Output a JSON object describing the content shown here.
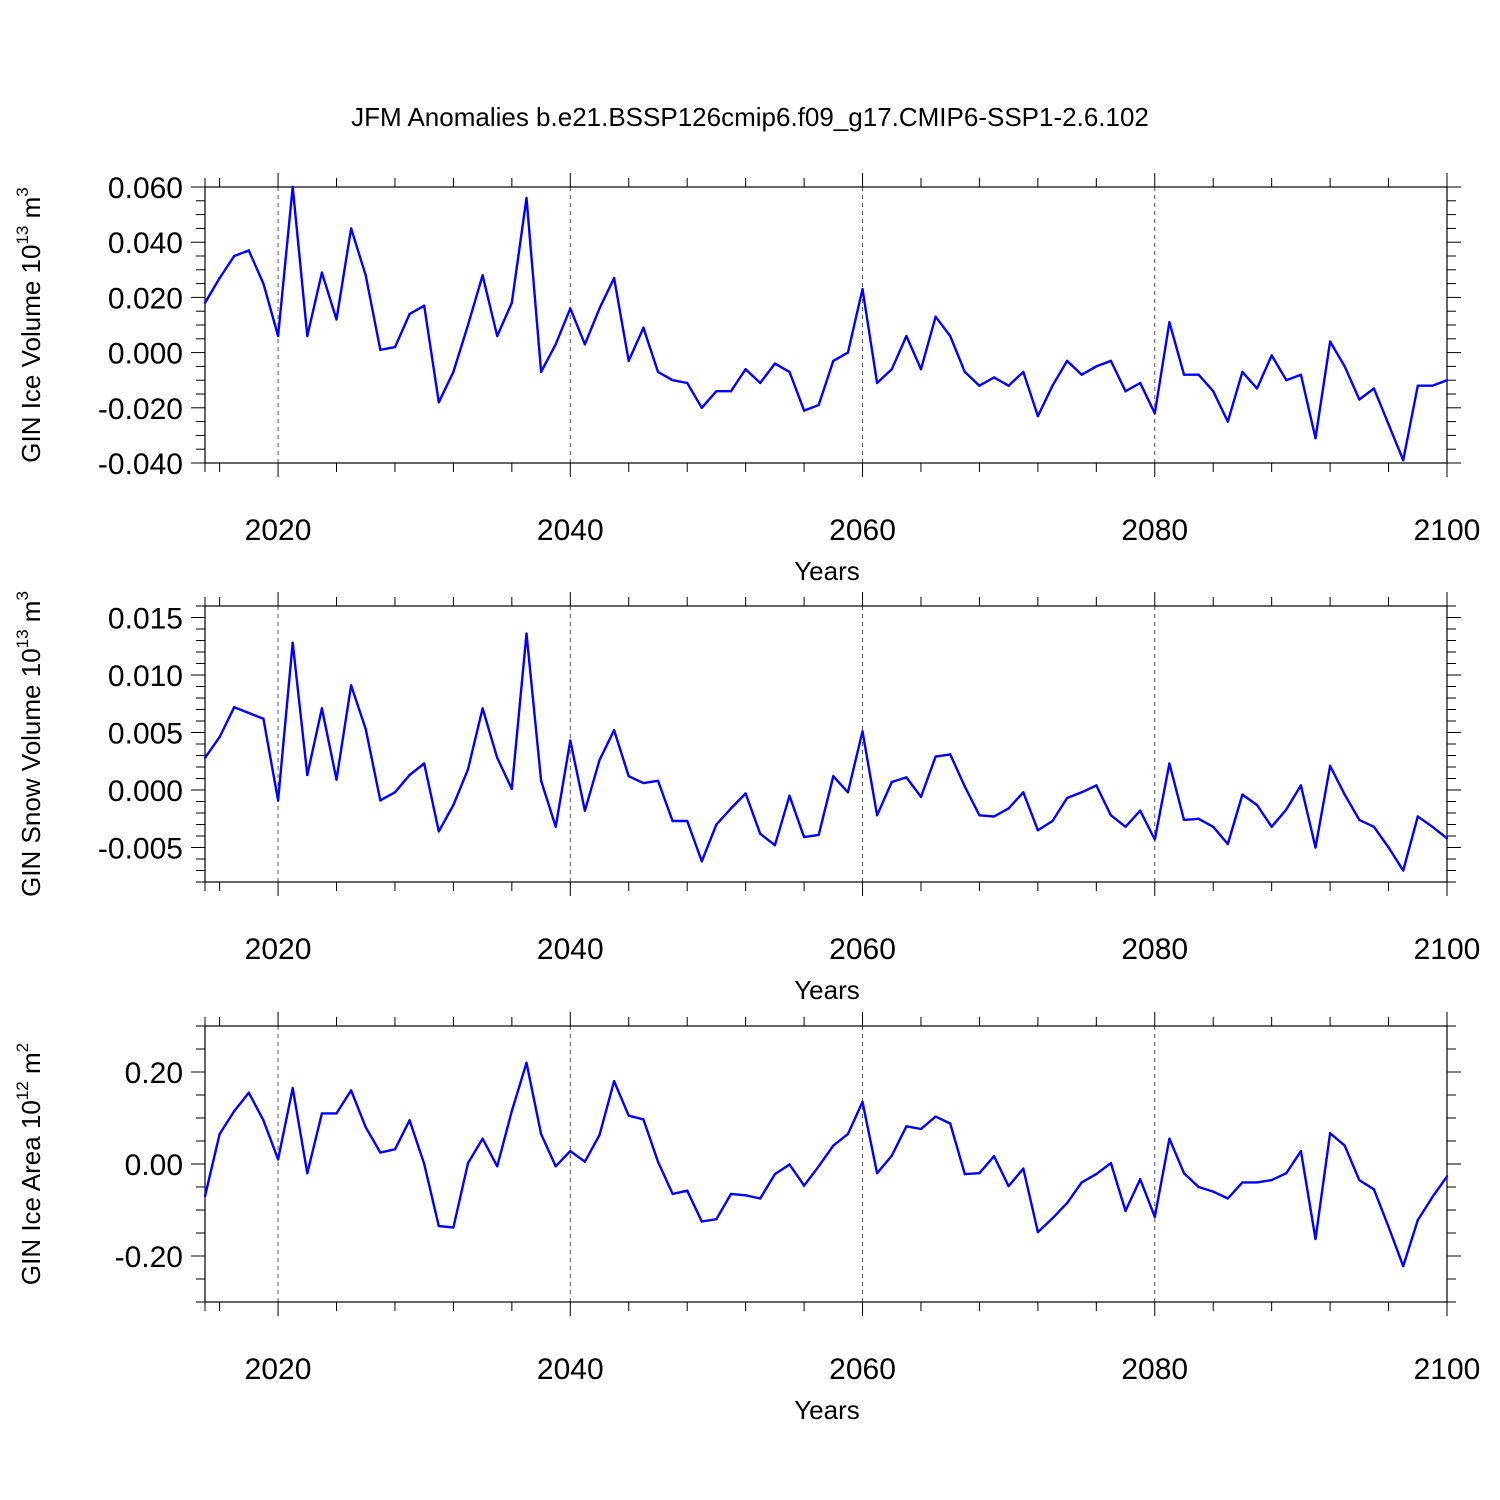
{
  "title": "JFM Anomalies b.e21.BSSP126cmip6.f09_g17.CMIP6-SSP1-2.6.102",
  "line_color": "#0000ff",
  "chart_data": [
    {
      "type": "line",
      "ylabel": "GIN Ice Volume 10",
      "ylabel_exp": "13",
      "ylabel_unit": " m",
      "ylabel_unit_exp": "3",
      "xlabel": "Years",
      "xlim": [
        2015,
        2100
      ],
      "ylim": [
        -0.04,
        0.06
      ],
      "xticks": [
        2020,
        2040,
        2060,
        2080,
        2100
      ],
      "xtick_labels": [
        "2020",
        "2040",
        "2060",
        "2080",
        "2100"
      ],
      "yticks": [
        -0.04,
        -0.02,
        0.0,
        0.02,
        0.04,
        0.06
      ],
      "ytick_labels": [
        "-0.040",
        "-0.020",
        "0.000",
        "0.020",
        "0.040",
        "0.060"
      ],
      "minor_y_step": 0.005,
      "grid": "vertical dashed at major x ticks",
      "x_start": 2015,
      "values": [
        0.018,
        0.027,
        0.035,
        0.037,
        0.025,
        0.006,
        0.06,
        0.006,
        0.029,
        0.012,
        0.045,
        0.028,
        0.001,
        0.002,
        0.014,
        0.017,
        -0.018,
        -0.007,
        0.01,
        0.028,
        0.006,
        0.018,
        0.056,
        -0.007,
        0.003,
        0.016,
        0.003,
        0.016,
        0.027,
        -0.003,
        0.009,
        -0.007,
        -0.01,
        -0.011,
        -0.02,
        -0.014,
        -0.014,
        -0.006,
        -0.011,
        -0.004,
        -0.007,
        -0.021,
        -0.019,
        -0.003,
        0.0,
        0.023,
        -0.011,
        -0.006,
        0.006,
        -0.006,
        0.013,
        0.006,
        -0.007,
        -0.012,
        -0.009,
        -0.012,
        -0.007,
        -0.023,
        -0.012,
        -0.003,
        -0.008,
        -0.005,
        -0.003,
        -0.014,
        -0.011,
        -0.022,
        0.011,
        -0.008,
        -0.008,
        -0.014,
        -0.025,
        -0.007,
        -0.013,
        -0.001,
        -0.01,
        -0.008,
        -0.031,
        0.004,
        -0.005,
        -0.017,
        -0.013,
        -0.026,
        -0.039,
        -0.012,
        -0.012,
        -0.01
      ]
    },
    {
      "type": "line",
      "ylabel": "GIN Snow Volume 10",
      "ylabel_exp": "13",
      "ylabel_unit": " m",
      "ylabel_unit_exp": "3",
      "xlabel": "Years",
      "xlim": [
        2015,
        2100
      ],
      "ylim": [
        -0.008,
        0.016
      ],
      "xticks": [
        2020,
        2040,
        2060,
        2080,
        2100
      ],
      "xtick_labels": [
        "2020",
        "2040",
        "2060",
        "2080",
        "2100"
      ],
      "yticks": [
        -0.005,
        0.0,
        0.005,
        0.01,
        0.015
      ],
      "ytick_labels": [
        "-0.005",
        "0.000",
        "0.005",
        "0.010",
        "0.015"
      ],
      "minor_y_step": 0.001,
      "grid": "vertical dashed at major x ticks",
      "x_start": 2015,
      "values": [
        0.0028,
        0.0046,
        0.0072,
        0.0067,
        0.0062,
        -0.0009,
        0.0128,
        0.0013,
        0.0071,
        0.0009,
        0.0091,
        0.0053,
        -0.0009,
        -0.0002,
        0.0013,
        0.0023,
        -0.0036,
        -0.0013,
        0.0018,
        0.0071,
        0.0028,
        0.0001,
        0.0136,
        0.0008,
        -0.0032,
        0.0043,
        -0.0018,
        0.0026,
        0.0052,
        0.0012,
        0.0006,
        0.0008,
        -0.0027,
        -0.0027,
        -0.0062,
        -0.003,
        -0.0016,
        -0.0003,
        -0.0038,
        -0.0048,
        -0.0005,
        -0.0041,
        -0.0039,
        0.0012,
        -0.0002,
        0.0051,
        -0.0022,
        0.0007,
        0.0011,
        -0.0006,
        0.0029,
        0.0031,
        0.0003,
        -0.0022,
        -0.0023,
        -0.0016,
        -0.0002,
        -0.0035,
        -0.0027,
        -0.0007,
        -0.0002,
        0.0004,
        -0.0022,
        -0.0032,
        -0.0018,
        -0.0043,
        0.0023,
        -0.0026,
        -0.0025,
        -0.0032,
        -0.0047,
        -0.0004,
        -0.0013,
        -0.0032,
        -0.0017,
        0.0004,
        -0.005,
        0.0021,
        -0.0004,
        -0.0026,
        -0.0032,
        -0.005,
        -0.007,
        -0.0023,
        -0.0032,
        -0.0042
      ]
    },
    {
      "type": "line",
      "ylabel": "GIN Ice Area 10",
      "ylabel_exp": "12",
      "ylabel_unit": " m",
      "ylabel_unit_exp": "2",
      "xlabel": "Years",
      "xlim": [
        2015,
        2100
      ],
      "ylim": [
        -0.3,
        0.3
      ],
      "xticks": [
        2020,
        2040,
        2060,
        2080,
        2100
      ],
      "xtick_labels": [
        "2020",
        "2040",
        "2060",
        "2080",
        "2100"
      ],
      "yticks": [
        -0.2,
        0.0,
        0.2
      ],
      "ytick_labels": [
        "-0.20",
        "0.00",
        "0.20"
      ],
      "minor_y_step": 0.05,
      "grid": "vertical dashed at major x ticks",
      "x_start": 2015,
      "values": [
        -0.07,
        0.065,
        0.115,
        0.155,
        0.095,
        0.01,
        0.165,
        -0.02,
        0.11,
        0.11,
        0.16,
        0.08,
        0.025,
        0.032,
        0.095,
        0.0,
        -0.135,
        -0.138,
        0.002,
        0.055,
        -0.005,
        0.115,
        0.22,
        0.065,
        -0.005,
        0.028,
        0.005,
        0.063,
        0.18,
        0.105,
        0.097,
        0.005,
        -0.065,
        -0.058,
        -0.125,
        -0.12,
        -0.065,
        -0.068,
        -0.075,
        -0.022,
        -0.001,
        -0.047,
        -0.005,
        0.04,
        0.065,
        0.135,
        -0.02,
        0.018,
        0.082,
        0.076,
        0.103,
        0.088,
        -0.022,
        -0.02,
        0.017,
        -0.048,
        -0.01,
        -0.148,
        -0.118,
        -0.085,
        -0.04,
        -0.022,
        0.002,
        -0.102,
        -0.033,
        -0.115,
        0.055,
        -0.02,
        -0.05,
        -0.06,
        -0.075,
        -0.04,
        -0.04,
        -0.035,
        -0.02,
        0.028,
        -0.163,
        0.067,
        0.04,
        -0.035,
        -0.055,
        -0.137,
        -0.222,
        -0.122,
        -0.072,
        -0.027
      ]
    }
  ]
}
